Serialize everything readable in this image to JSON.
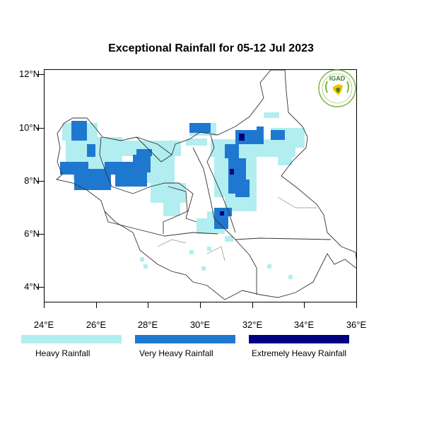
{
  "title": "Exceptional Rainfall for 05-12 Jul 2023",
  "logo": {
    "text": "IGAD",
    "icon": "igad-logo-icon"
  },
  "axes": {
    "y_labels": [
      "12°N",
      "10°N",
      "8°N",
      "6°N",
      "4°N"
    ],
    "x_labels": [
      "24°E",
      "26°E",
      "28°E",
      "30°E",
      "32°E",
      "34°E",
      "36°E"
    ]
  },
  "legend": [
    {
      "label": "Heavy Rainfall",
      "color": "#b2eef0"
    },
    {
      "label": "Very Heavy Rainfall",
      "color": "#1f78d0"
    },
    {
      "label": "Extremely Heavy Rainfall",
      "color": "#000080"
    }
  ],
  "colors": {
    "heavy": "#b2eef0",
    "very_heavy": "#1f78d0",
    "extreme": "#000080",
    "border": "#333333"
  }
}
